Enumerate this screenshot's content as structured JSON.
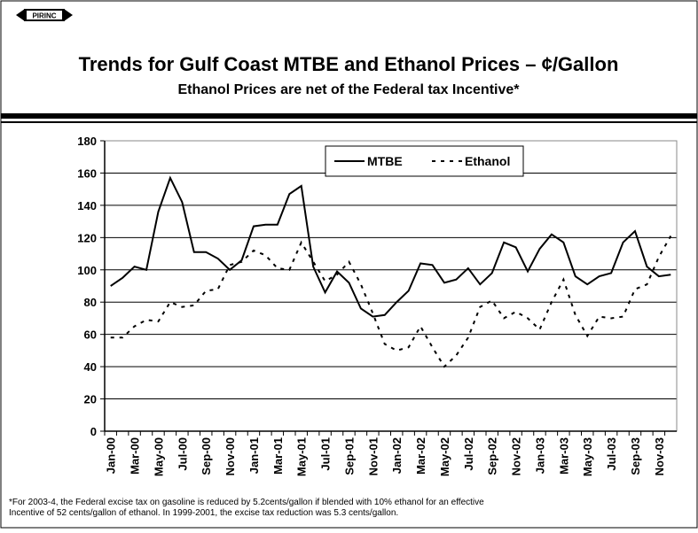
{
  "header": {
    "logo": "PIRINC",
    "title": "Trends for Gulf Coast MTBE and Ethanol Prices – ¢/Gallon",
    "subtitle": "Ethanol Prices are net of the Federal tax Incentive*"
  },
  "chart_data": {
    "type": "line",
    "categories": [
      "Jan-00",
      null,
      "Mar-00",
      null,
      "May-00",
      null,
      "Jul-00",
      null,
      "Sep-00",
      null,
      "Nov-00",
      null,
      "Jan-01",
      null,
      "Mar-01",
      null,
      "May-01",
      null,
      "Jul-01",
      null,
      "Sep-01",
      null,
      "Nov-01",
      null,
      "Jan-02",
      null,
      "Mar-02",
      null,
      "May-02",
      null,
      "Jul-02",
      null,
      "Sep-02",
      null,
      "Nov-02",
      null,
      "Jan-03",
      null,
      "Mar-03",
      null,
      "May-03",
      null,
      "Jul-03",
      null,
      "Sep-03",
      null,
      "Nov-03",
      null
    ],
    "series": [
      {
        "name": "MTBE",
        "color": "#000000",
        "dash": false,
        "values": [
          90,
          95,
          102,
          100,
          136,
          157,
          142,
          111,
          111,
          107,
          100,
          106,
          127,
          128,
          128,
          147,
          152,
          102,
          86,
          99,
          92,
          76,
          71,
          72,
          80,
          87,
          104,
          103,
          92,
          94,
          101,
          91,
          98,
          117,
          114,
          99,
          113,
          122,
          117,
          96,
          91,
          96,
          98,
          117,
          124,
          102,
          96,
          97
        ]
      },
      {
        "name": "Ethanol",
        "color": "#000000",
        "dash": true,
        "values": [
          58,
          58,
          65,
          69,
          68,
          80,
          77,
          78,
          87,
          88,
          103,
          105,
          112,
          109,
          101,
          100,
          117,
          105,
          93,
          97,
          105,
          91,
          73,
          54,
          50,
          52,
          65,
          52,
          40,
          47,
          58,
          77,
          81,
          70,
          74,
          70,
          63,
          80,
          94,
          72,
          59,
          71,
          70,
          71,
          88,
          91,
          108,
          121
        ]
      }
    ],
    "ylim": [
      0,
      180
    ],
    "yticks": [
      0,
      20,
      40,
      60,
      80,
      100,
      120,
      140,
      160,
      180
    ],
    "grid": true,
    "legend": "top"
  },
  "footnote": [
    "*For 2003-4, the Federal excise tax on gasoline is reduced by 5.2cents/gallon if blended with 10% ethanol for an effective",
    "Incentive of 52 cents/gallon of ethanol.  In 1999-2001, the excise tax reduction was 5.3 cents/gallon."
  ]
}
